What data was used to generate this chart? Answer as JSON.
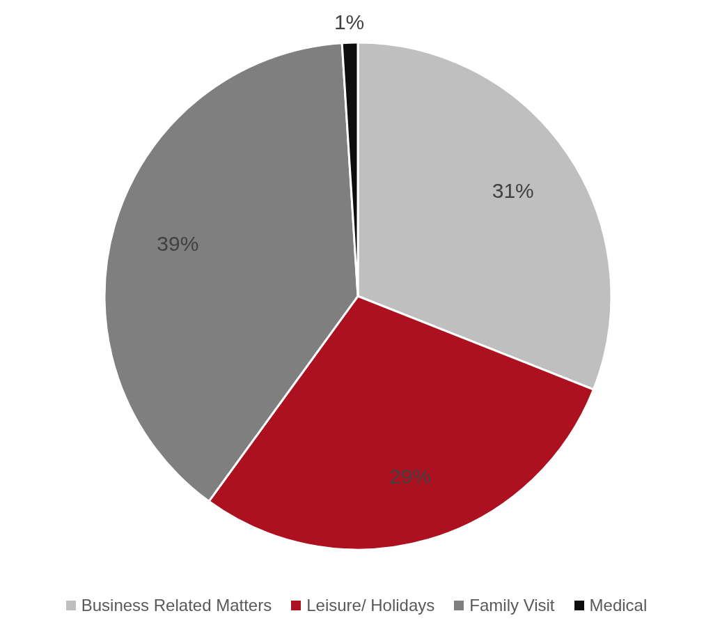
{
  "chart_data": {
    "type": "pie",
    "categories": [
      "Business Related Matters",
      "Leisure/ Holidays",
      "Family Visit",
      "Medical"
    ],
    "values": [
      31,
      29,
      39,
      1
    ],
    "value_labels": [
      "31%",
      "29%",
      "39%",
      "1%"
    ],
    "colors": [
      "#bfbfbf",
      "#ad101e",
      "#7f7f7f",
      "#0d0d0d"
    ],
    "legend": "bottom"
  }
}
